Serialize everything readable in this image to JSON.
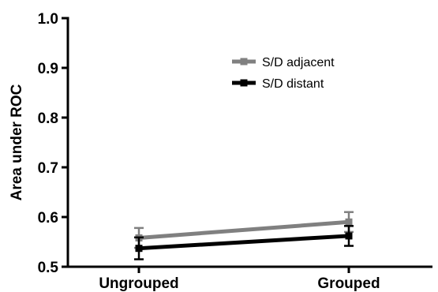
{
  "chart_data": {
    "type": "line",
    "title": "",
    "xlabel": "",
    "ylabel": "Area under ROC",
    "categories": [
      "Ungrouped",
      "Grouped"
    ],
    "ylim": [
      0.5,
      1.0
    ],
    "yticks": [
      "0.5",
      "0.6",
      "0.7",
      "0.8",
      "0.9",
      "1.0"
    ],
    "grid": false,
    "legend_position": "top-right",
    "series": [
      {
        "name": "S/D adjacent",
        "color": "#808080",
        "values": [
          0.558,
          0.59
        ],
        "error": [
          0.02,
          0.02
        ]
      },
      {
        "name": "S/D distant",
        "color": "#000000",
        "values": [
          0.537,
          0.562
        ],
        "error": [
          0.022,
          0.02
        ]
      }
    ]
  }
}
